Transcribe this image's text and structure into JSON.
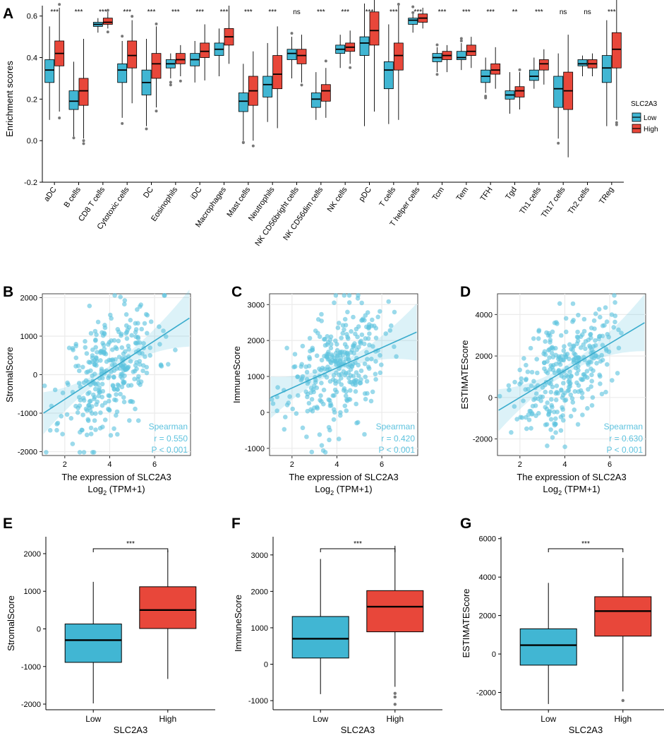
{
  "colors": {
    "low": "#41b6d3",
    "high": "#e8473a",
    "scatter": "#5ec3df",
    "grid": "#ebebeb"
  },
  "chart_data": [
    {
      "panel": "A",
      "type": "box",
      "ylabel": "Enrichment scores",
      "ylim": [
        -0.2,
        0.65
      ],
      "yticks": [
        -0.2,
        0.0,
        0.2,
        0.4,
        0.6
      ],
      "ytick_labels": [
        "-0.2",
        "0.0",
        "0.2",
        "0.4",
        "0.6"
      ],
      "legend_title": "SLC2A3",
      "legend": [
        "Low",
        "High"
      ],
      "categories": [
        "aDC",
        "B cells",
        "CD8 T cells",
        "Cytotoxic cells",
        "DC",
        "Eosinophils",
        "iDC",
        "Macrophages",
        "Mast cells",
        "Neutrophils",
        "NK CD56bright cells",
        "NK CD56dim cells",
        "NK cells",
        "pDC",
        "T cells",
        "T helper cells",
        "Tcm",
        "Tem",
        "TFH",
        "Tgd",
        "Th1 cells",
        "Th17 cells",
        "Th2 cells",
        "TReg"
      ],
      "significance": [
        "***",
        "***",
        "***",
        "***",
        "***",
        "***",
        "***",
        "***",
        "***",
        "***",
        "ns",
        "***",
        "***",
        "***",
        "***",
        "***",
        "***",
        "***",
        "***",
        "**",
        "***",
        "ns",
        "ns",
        "***"
      ],
      "series": [
        {
          "name": "Low",
          "boxes": [
            [
              0.1,
              0.28,
              0.34,
              0.39,
              0.55
            ],
            [
              0.02,
              0.15,
              0.19,
              0.24,
              0.38
            ],
            [
              0.52,
              0.55,
              0.56,
              0.57,
              0.59
            ],
            [
              0.11,
              0.28,
              0.34,
              0.37,
              0.48
            ],
            [
              0.07,
              0.22,
              0.28,
              0.34,
              0.49
            ],
            [
              0.3,
              0.35,
              0.37,
              0.39,
              0.42
            ],
            [
              0.28,
              0.36,
              0.39,
              0.42,
              0.48
            ],
            [
              0.31,
              0.41,
              0.44,
              0.47,
              0.54
            ],
            [
              0.0,
              0.14,
              0.19,
              0.23,
              0.37
            ],
            [
              0.09,
              0.21,
              0.27,
              0.31,
              0.47
            ],
            [
              0.3,
              0.39,
              0.42,
              0.44,
              0.5
            ],
            [
              0.1,
              0.16,
              0.2,
              0.23,
              0.33
            ],
            [
              0.35,
              0.42,
              0.44,
              0.46,
              0.51
            ],
            [
              0.07,
              0.41,
              0.47,
              0.5,
              0.66
            ],
            [
              0.08,
              0.25,
              0.34,
              0.38,
              0.56
            ],
            [
              0.52,
              0.56,
              0.58,
              0.59,
              0.61
            ],
            [
              0.33,
              0.38,
              0.4,
              0.42,
              0.45
            ],
            [
              0.34,
              0.39,
              0.4,
              0.43,
              0.47
            ],
            [
              0.23,
              0.28,
              0.31,
              0.34,
              0.4
            ],
            [
              0.13,
              0.2,
              0.22,
              0.24,
              0.33
            ],
            [
              0.25,
              0.29,
              0.31,
              0.34,
              0.4
            ],
            [
              0.01,
              0.16,
              0.25,
              0.31,
              0.42
            ],
            [
              0.31,
              0.36,
              0.37,
              0.39,
              0.41
            ],
            [
              0.07,
              0.28,
              0.35,
              0.41,
              0.58
            ]
          ]
        },
        {
          "name": "High",
          "boxes": [
            [
              0.14,
              0.36,
              0.42,
              0.48,
              0.64
            ],
            [
              0.01,
              0.17,
              0.24,
              0.3,
              0.49
            ],
            [
              0.54,
              0.56,
              0.57,
              0.59,
              0.62
            ],
            [
              0.18,
              0.35,
              0.41,
              0.48,
              0.58
            ],
            [
              0.16,
              0.3,
              0.37,
              0.42,
              0.55
            ],
            [
              0.31,
              0.37,
              0.39,
              0.42,
              0.46
            ],
            [
              0.29,
              0.4,
              0.43,
              0.47,
              0.56
            ],
            [
              0.37,
              0.46,
              0.5,
              0.54,
              0.65
            ],
            [
              0.0,
              0.17,
              0.24,
              0.31,
              0.43
            ],
            [
              0.06,
              0.25,
              0.32,
              0.41,
              0.55
            ],
            [
              0.28,
              0.37,
              0.41,
              0.44,
              0.51
            ],
            [
              0.11,
              0.19,
              0.24,
              0.27,
              0.35
            ],
            [
              0.37,
              0.43,
              0.45,
              0.47,
              0.53
            ],
            [
              0.14,
              0.46,
              0.53,
              0.62,
              0.76
            ],
            [
              0.1,
              0.34,
              0.41,
              0.47,
              0.65
            ],
            [
              0.54,
              0.57,
              0.59,
              0.61,
              0.64
            ],
            [
              0.33,
              0.39,
              0.41,
              0.43,
              0.46
            ],
            [
              0.35,
              0.41,
              0.43,
              0.46,
              0.5
            ],
            [
              0.25,
              0.32,
              0.34,
              0.37,
              0.45
            ],
            [
              0.15,
              0.21,
              0.24,
              0.26,
              0.33
            ],
            [
              0.27,
              0.34,
              0.37,
              0.39,
              0.44
            ],
            [
              -0.08,
              0.15,
              0.24,
              0.33,
              0.51
            ],
            [
              0.31,
              0.35,
              0.37,
              0.39,
              0.42
            ],
            [
              0.1,
              0.35,
              0.44,
              0.52,
              0.76
            ]
          ]
        }
      ]
    },
    {
      "panel": "B",
      "type": "scatter",
      "ylabel": "StromalScore",
      "xlabel": "The expression of SLC2A3",
      "xlabel2_main": "Log",
      "xlabel2_sub": "2",
      "xlabel2_rest": " (TPM+1)",
      "xlim": [
        1.0,
        7.6
      ],
      "ylim": [
        -2100,
        2100
      ],
      "xticks": [
        2,
        4,
        6
      ],
      "yticks": [
        -2000,
        -1000,
        0,
        1000,
        2000
      ],
      "ytick_labels": [
        "-2000",
        "-1000",
        "0",
        "1000",
        "2000"
      ],
      "xtick_labels": [
        "2",
        "4",
        "6"
      ],
      "fit": {
        "intercept": -1400,
        "slope": 380
      },
      "stat_method": "Spearman",
      "stat_r": "r = 0.550",
      "stat_p": "P < 0.001",
      "y_mean_at_4": 120,
      "y_spread": 780,
      "n_points": 320,
      "seed": 11
    },
    {
      "panel": "C",
      "type": "scatter",
      "ylabel": "ImmuneScore",
      "xlabel": "The expression of SLC2A3",
      "xlabel2_main": "Log",
      "xlabel2_sub": "2",
      "xlabel2_rest": " (TPM+1)",
      "xlim": [
        1.0,
        7.6
      ],
      "ylim": [
        -1200,
        3300
      ],
      "xticks": [
        2,
        4,
        6
      ],
      "yticks": [
        -1000,
        0,
        1000,
        2000,
        3000
      ],
      "ytick_labels": [
        "-1000",
        "0",
        "1000",
        "2000",
        "3000"
      ],
      "xtick_labels": [
        "2",
        "4",
        "6"
      ],
      "fit": {
        "intercept": 120,
        "slope": 280
      },
      "stat_method": "Spearman",
      "stat_r": "r = 0.420",
      "stat_p": "P < 0.001",
      "y_mean_at_4": 1250,
      "y_spread": 800,
      "n_points": 320,
      "seed": 23
    },
    {
      "panel": "D",
      "type": "scatter",
      "ylabel": "ESTIMATEScore",
      "xlabel": "The expression of SLC2A3",
      "xlabel2_main": "Log",
      "xlabel2_sub": "2",
      "xlabel2_rest": " (TPM+1)",
      "xlim": [
        1.0,
        7.6
      ],
      "ylim": [
        -2800,
        5000
      ],
      "xticks": [
        2,
        4,
        6
      ],
      "yticks": [
        -2000,
        0,
        2000,
        4000
      ],
      "ytick_labels": [
        "-2000",
        "0",
        "2000",
        "4000"
      ],
      "xtick_labels": [
        "2",
        "4",
        "6"
      ],
      "fit": {
        "intercept": -1300,
        "slope": 650
      },
      "stat_method": "Spearman",
      "stat_r": "r = 0.630",
      "stat_p": "P < 0.001",
      "y_mean_at_4": 1400,
      "y_spread": 1350,
      "n_points": 320,
      "seed": 37
    },
    {
      "panel": "E",
      "type": "box",
      "ylabel": "StromalScore",
      "xlabel": "SLC2A3",
      "categories": [
        "Low",
        "High"
      ],
      "ylim": [
        -2150,
        2450
      ],
      "yticks": [
        -2000,
        -1000,
        0,
        1000,
        2000
      ],
      "ytick_labels": [
        "-2000",
        "-1000",
        "0",
        "1000",
        "2000"
      ],
      "boxes": [
        [
          -1980,
          -890,
          -300,
          130,
          1250
        ],
        [
          -1330,
          10,
          500,
          1120,
          2090
        ]
      ],
      "outliers": [
        [],
        []
      ],
      "significance": "***"
    },
    {
      "panel": "F",
      "type": "box",
      "ylabel": "ImmuneScore",
      "xlabel": "SLC2A3",
      "categories": [
        "Low",
        "High"
      ],
      "ylim": [
        -1250,
        3500
      ],
      "yticks": [
        -1000,
        0,
        1000,
        2000,
        3000
      ],
      "ytick_labels": [
        "-1000",
        "0",
        "1000",
        "2000",
        "3000"
      ],
      "boxes": [
        [
          -820,
          170,
          700,
          1310,
          2890
        ],
        [
          -620,
          890,
          1580,
          2020,
          3250
        ]
      ],
      "outliers": [
        [],
        [
          -800,
          -900,
          -1100
        ]
      ],
      "significance": "***"
    },
    {
      "panel": "G",
      "type": "box",
      "ylabel": "ESTIMATEScore",
      "xlabel": "SLC2A3",
      "categories": [
        "Low",
        "High"
      ],
      "ylim": [
        -2900,
        6100
      ],
      "yticks": [
        -2000,
        0,
        2000,
        4000,
        6000
      ],
      "ytick_labels": [
        "-2000",
        "0",
        "2000",
        "4000",
        "6000"
      ],
      "boxes": [
        [
          -2600,
          -580,
          460,
          1310,
          3700
        ],
        [
          -1950,
          930,
          2230,
          2980,
          5000
        ]
      ],
      "outliers": [
        [],
        [
          -2420
        ]
      ],
      "significance": "***"
    }
  ]
}
